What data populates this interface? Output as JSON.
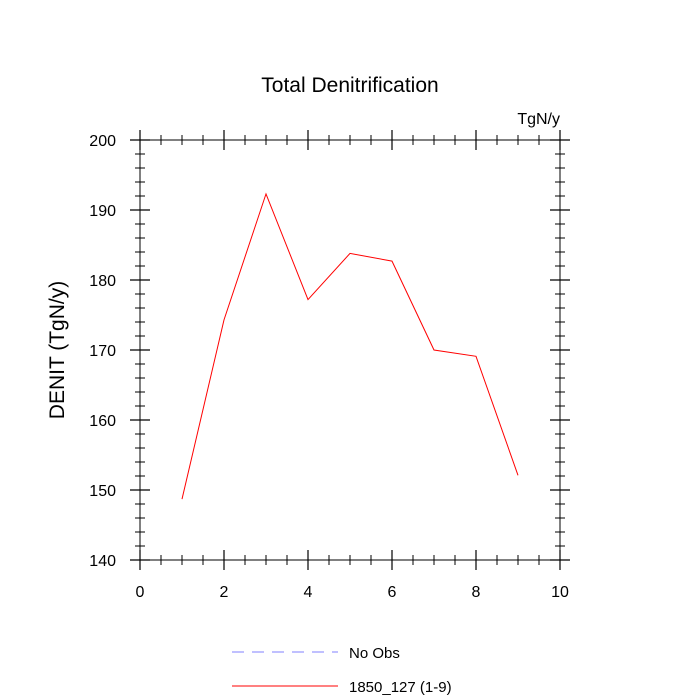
{
  "chart_data": {
    "type": "line",
    "title": "Total Denitrification",
    "units_label": "TgN/y",
    "ylabel": "DENIT  (TgN/y)",
    "xlabel": "",
    "xlim": [
      0,
      10
    ],
    "ylim": [
      140,
      200
    ],
    "x_ticks": [
      0,
      2,
      4,
      6,
      8,
      10
    ],
    "y_ticks": [
      140,
      150,
      160,
      170,
      180,
      190,
      200
    ],
    "grid": false,
    "legend_position": "bottom",
    "series": [
      {
        "name": "No Obs",
        "style": "dashed",
        "color": "#8080ff",
        "x": [],
        "values": []
      },
      {
        "name": "1850_127 (1-9)",
        "style": "solid",
        "color": "#ff0000",
        "x": [
          1,
          2,
          3,
          4,
          5,
          6,
          7,
          8,
          9
        ],
        "values": [
          148.7,
          174.3,
          192.3,
          177.2,
          183.8,
          182.7,
          170.0,
          169.1,
          152.1
        ]
      }
    ]
  }
}
